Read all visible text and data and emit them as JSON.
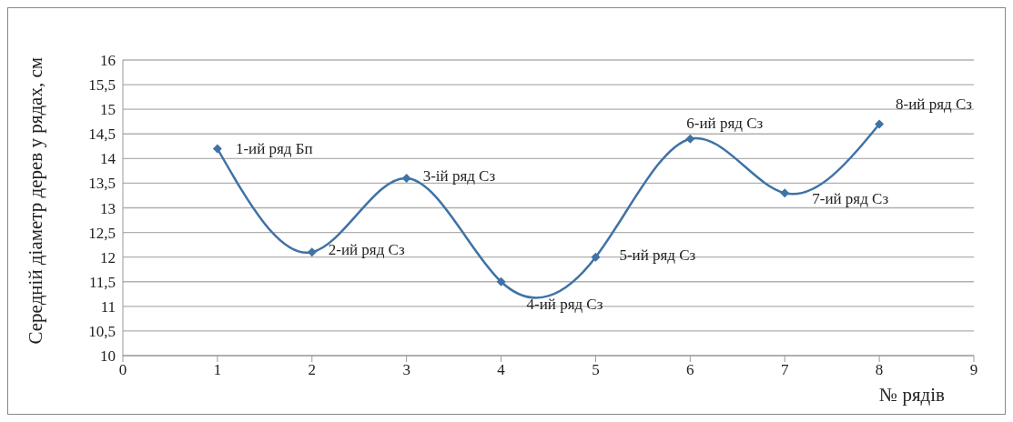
{
  "chart_data": {
    "type": "line",
    "xlabel": "№ рядів",
    "ylabel": "Середній діаметр дерев у рядах, см",
    "x": [
      1,
      2,
      3,
      4,
      5,
      6,
      7,
      8
    ],
    "series": [
      {
        "color": "#3f72a6",
        "values": [
          14.2,
          12.1,
          13.6,
          11.5,
          12.0,
          14.4,
          13.3,
          14.7
        ]
      }
    ],
    "xlim": [
      0,
      9
    ],
    "xticks": [
      0,
      1,
      2,
      3,
      4,
      5,
      6,
      7,
      8,
      9
    ],
    "ylim": [
      10,
      16
    ],
    "yticks": [
      10,
      {
        "value": 10.5,
        "label": "10,5"
      },
      11,
      {
        "value": 11.5,
        "label": "11,5"
      },
      12,
      {
        "value": 12.5,
        "label": "12,5"
      },
      13,
      {
        "value": 13.5,
        "label": "13,5"
      },
      14,
      {
        "value": 14.5,
        "label": "14,5"
      },
      15,
      {
        "value": 15.5,
        "label": "15,5"
      },
      16
    ],
    "grid": "y",
    "marker": "diamond",
    "line_style": "solid",
    "legend": false,
    "annotations": [
      {
        "text": "1-ий ряд Бп",
        "x": 1,
        "y": 14.2
      },
      {
        "text": "2-ий ряд Сз",
        "x": 2,
        "y": 12.1
      },
      {
        "text": "3-ій ряд Сз",
        "x": 3,
        "y": 13.6
      },
      {
        "text": "4-ий ряд Сз",
        "x": 4,
        "y": 11.5
      },
      {
        "text": "5-ий ряд Сз",
        "x": 5,
        "y": 12.0
      },
      {
        "text": "6-ий ряд Сз",
        "x": 6,
        "y": 14.4
      },
      {
        "text": "7-ий ряд Сз",
        "x": 7,
        "y": 13.3
      },
      {
        "text": "8-ий ряд Сз",
        "x": 8,
        "y": 14.7
      }
    ]
  }
}
